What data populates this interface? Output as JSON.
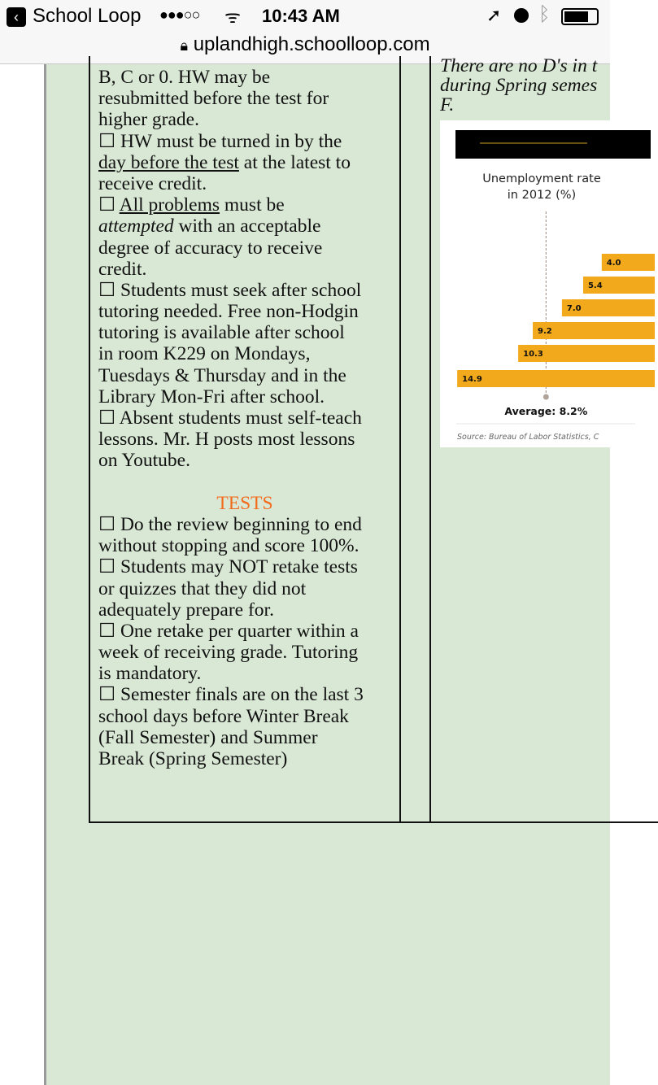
{
  "status_bar": {
    "back_app": "School Loop",
    "signal": "●●●○○",
    "time": "10:43 AM",
    "battery_level": 0.75
  },
  "url_bar": {
    "domain": "uplandhigh.schoolloop.com"
  },
  "left_column": {
    "lines": [
      [
        {
          "t": "B, C or 0. HW may be"
        }
      ],
      [
        {
          "t": "resubmitted before the test for"
        }
      ],
      [
        {
          "t": "higher grade."
        }
      ],
      [
        {
          "t": "☐ HW must be turned in by the"
        }
      ],
      [
        {
          "t": "day before the test",
          "s": "u"
        },
        {
          "t": " at the latest to"
        }
      ],
      [
        {
          "t": "receive credit."
        }
      ],
      [
        {
          "t": "☐ "
        },
        {
          "t": "All problems",
          "s": "u"
        },
        {
          "t": " must be"
        }
      ],
      [
        {
          "t": "attempted",
          "s": "i"
        },
        {
          "t": " with an acceptable"
        }
      ],
      [
        {
          "t": "degree of accuracy to receive"
        }
      ],
      [
        {
          "t": "credit."
        }
      ],
      [
        {
          "t": "☐ Students must seek after school"
        }
      ],
      [
        {
          "t": "tutoring needed. Free non-Hodgin"
        }
      ],
      [
        {
          "t": "tutoring is available after school"
        }
      ],
      [
        {
          "t": "in room K229 on Mondays,"
        }
      ],
      [
        {
          "t": "Tuesdays & Thursday and in the"
        }
      ],
      [
        {
          "t": "Library Mon-Fri after school."
        }
      ],
      [
        {
          "t": "☐ Absent students must self-teach"
        }
      ],
      [
        {
          "t": "lessons. Mr. H posts most lessons"
        }
      ],
      [
        {
          "t": "on Youtube."
        }
      ],
      [],
      [
        {
          "t": "TESTS",
          "s": "tests"
        }
      ],
      [
        {
          "t": "☐ Do the review beginning to end"
        }
      ],
      [
        {
          "t": "without stopping and score 100%."
        }
      ],
      [
        {
          "t": "☐ Students may NOT retake tests"
        }
      ],
      [
        {
          "t": "or quizzes that they did not"
        }
      ],
      [
        {
          "t": "adequately prepare for."
        }
      ],
      [
        {
          "t": "☐ One retake per quarter within a"
        }
      ],
      [
        {
          "t": "week of receiving grade. Tutoring"
        }
      ],
      [
        {
          "t": "is mandatory."
        }
      ],
      [
        {
          "t": "☐ Semester finals are on the last 3"
        }
      ],
      [
        {
          "t": "school days before Winter Break"
        }
      ],
      [
        {
          "t": "(Fall Semester) and Summer"
        }
      ],
      [
        {
          "t": "Break (Spring Semester)"
        }
      ]
    ],
    "tests_color": "#f26b1d"
  },
  "right_column": {
    "lines": [
      "There are no D's in t",
      "during Spring semes",
      "F."
    ]
  },
  "chart_data": {
    "type": "bar",
    "orientation": "horizontal",
    "title": "Unemployment rate in 2012 (%)",
    "title_lines": [
      "Unemployment rate",
      "in 2012 (%)"
    ],
    "values": [
      4.0,
      5.4,
      7.0,
      9.2,
      10.3,
      14.9
    ],
    "labels": [
      "4.0",
      "5.4",
      "7.0",
      "9.2",
      "10.3",
      "14.9"
    ],
    "average": 8.2,
    "average_label": "Average: 8.2%",
    "source": "Source: Bureau of Labor Statistics, C",
    "bar_color": "#f2a91c"
  }
}
